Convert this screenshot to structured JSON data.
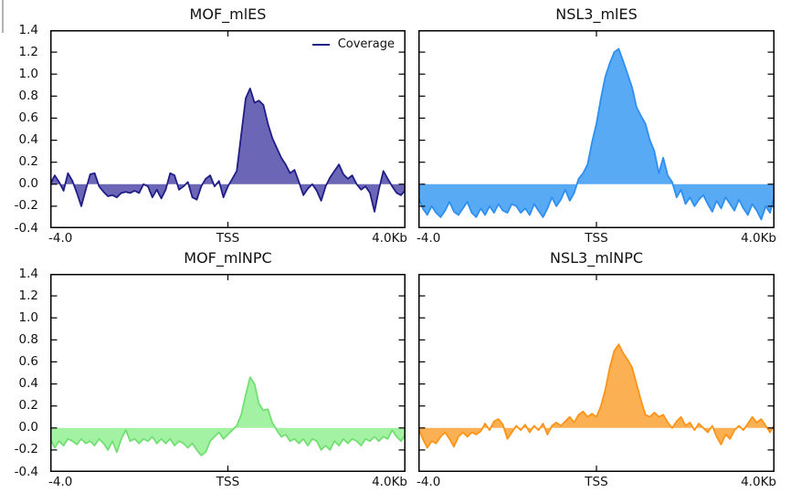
{
  "legend": {
    "label": "Coverage",
    "position": "upper right",
    "line_color": "#201d86"
  },
  "chart_data": [
    {
      "type": "area",
      "title": "MOF_mlES",
      "x_range": [
        -4,
        4
      ],
      "ylim": [
        -0.4,
        1.4
      ],
      "x_ticks": [
        "-4.0",
        "TSS",
        "4.0Kb"
      ],
      "y_ticks": [
        "1.4",
        "1.2",
        "1.0",
        "0.8",
        "0.6",
        "0.4",
        "0.2",
        "0.0",
        "-0.2",
        "-0.4"
      ],
      "show_y_labels": true,
      "has_legend": true,
      "grid": false,
      "line_color": "#201d86",
      "fill_color": "#6b66b6",
      "series_name": "Coverage",
      "values": [
        0.0,
        0.08,
        0.02,
        -0.06,
        0.1,
        0.03,
        -0.08,
        -0.2,
        -0.05,
        0.09,
        0.1,
        -0.02,
        -0.07,
        -0.11,
        -0.1,
        -0.12,
        -0.08,
        -0.07,
        -0.08,
        -0.06,
        -0.08,
        0.0,
        -0.02,
        -0.12,
        -0.05,
        -0.13,
        -0.05,
        0.1,
        0.08,
        -0.05,
        -0.02,
        0.02,
        -0.12,
        -0.14,
        -0.02,
        0.05,
        0.08,
        -0.02,
        0.03,
        -0.12,
        -0.02,
        0.05,
        0.12,
        0.45,
        0.78,
        0.87,
        0.74,
        0.76,
        0.72,
        0.55,
        0.42,
        0.33,
        0.24,
        0.18,
        0.1,
        0.13,
        0.02,
        -0.1,
        -0.04,
        0.0,
        -0.06,
        -0.15,
        -0.02,
        0.06,
        0.12,
        0.18,
        0.09,
        0.05,
        0.08,
        0.0,
        -0.05,
        -0.02,
        -0.08,
        -0.25,
        -0.05,
        0.12,
        0.05,
        -0.02,
        -0.08,
        -0.1,
        -0.05
      ]
    },
    {
      "type": "area",
      "title": "NSL3_mlES",
      "x_range": [
        -4,
        4
      ],
      "ylim": [
        -0.4,
        1.4
      ],
      "x_ticks": [
        "-4.0",
        "TSS",
        "4.0Kb"
      ],
      "y_ticks": [
        "1.4",
        "1.2",
        "1.0",
        "0.8",
        "0.6",
        "0.4",
        "0.2",
        "0.0",
        "-0.2",
        "-0.4"
      ],
      "show_y_labels": false,
      "has_legend": false,
      "grid": false,
      "line_color": "#2e8fef",
      "fill_color": "#58aaf5",
      "series_name": "Coverage",
      "values": [
        -0.12,
        -0.22,
        -0.28,
        -0.2,
        -0.26,
        -0.3,
        -0.24,
        -0.16,
        -0.25,
        -0.28,
        -0.22,
        -0.16,
        -0.26,
        -0.3,
        -0.22,
        -0.28,
        -0.2,
        -0.26,
        -0.18,
        -0.24,
        -0.26,
        -0.18,
        -0.2,
        -0.26,
        -0.22,
        -0.28,
        -0.18,
        -0.24,
        -0.3,
        -0.22,
        -0.12,
        -0.2,
        -0.14,
        -0.05,
        -0.15,
        -0.08,
        0.05,
        0.1,
        0.18,
        0.38,
        0.55,
        0.78,
        0.98,
        1.1,
        1.2,
        1.23,
        1.12,
        1.0,
        0.88,
        0.7,
        0.62,
        0.55,
        0.4,
        0.3,
        0.1,
        0.24,
        0.08,
        0.02,
        -0.12,
        -0.05,
        -0.18,
        -0.12,
        -0.2,
        -0.14,
        -0.1,
        -0.18,
        -0.25,
        -0.15,
        -0.22,
        -0.12,
        -0.18,
        -0.24,
        -0.14,
        -0.22,
        -0.28,
        -0.18,
        -0.24,
        -0.32,
        -0.2,
        -0.26,
        -0.1
      ]
    },
    {
      "type": "area",
      "title": "MOF_mlNPC",
      "x_range": [
        -4,
        4
      ],
      "ylim": [
        -0.4,
        1.4
      ],
      "x_ticks": [
        "-4.0",
        "TSS",
        "4.0Kb"
      ],
      "y_ticks": [
        "1.4",
        "1.2",
        "1.0",
        "0.8",
        "0.6",
        "0.4",
        "0.2",
        "0.0",
        "-0.2",
        "-0.4"
      ],
      "show_y_labels": true,
      "has_legend": false,
      "grid": false,
      "line_color": "#72df72",
      "fill_color": "#a3f1a3",
      "series_name": "Coverage",
      "values": [
        -0.1,
        -0.18,
        -0.12,
        -0.16,
        -0.1,
        -0.12,
        -0.15,
        -0.1,
        -0.14,
        -0.12,
        -0.16,
        -0.1,
        -0.14,
        -0.2,
        -0.12,
        -0.22,
        -0.1,
        -0.02,
        -0.12,
        -0.1,
        -0.14,
        -0.1,
        -0.12,
        -0.08,
        -0.14,
        -0.1,
        -0.14,
        -0.1,
        -0.16,
        -0.12,
        -0.14,
        -0.18,
        -0.14,
        -0.2,
        -0.25,
        -0.22,
        -0.12,
        -0.08,
        -0.04,
        -0.1,
        -0.06,
        -0.02,
        0.02,
        0.12,
        0.3,
        0.46,
        0.4,
        0.22,
        0.16,
        0.17,
        0.05,
        -0.02,
        -0.08,
        -0.06,
        -0.12,
        -0.1,
        -0.14,
        -0.1,
        -0.16,
        -0.1,
        -0.12,
        -0.2,
        -0.16,
        -0.2,
        -0.12,
        -0.16,
        -0.1,
        -0.14,
        -0.1,
        -0.12,
        -0.16,
        -0.1,
        -0.12,
        -0.08,
        -0.12,
        -0.08,
        -0.1,
        -0.02,
        -0.08,
        -0.12,
        -0.06
      ]
    },
    {
      "type": "area",
      "title": "NSL3_mlNPC",
      "x_range": [
        -4,
        4
      ],
      "ylim": [
        -0.4,
        1.4
      ],
      "x_ticks": [
        "-4.0",
        "TSS",
        "4.0Kb"
      ],
      "y_ticks": [
        "1.4",
        "1.2",
        "1.0",
        "0.8",
        "0.6",
        "0.4",
        "0.2",
        "0.0",
        "-0.2",
        "-0.4"
      ],
      "show_y_labels": false,
      "has_legend": false,
      "grid": false,
      "line_color": "#fb9418",
      "fill_color": "#fbb054",
      "series_name": "Coverage",
      "values": [
        0.0,
        -0.1,
        -0.18,
        -0.12,
        -0.14,
        -0.08,
        -0.04,
        -0.1,
        -0.17,
        -0.08,
        -0.04,
        -0.08,
        -0.04,
        -0.06,
        -0.03,
        0.04,
        -0.02,
        0.06,
        0.08,
        0.03,
        -0.1,
        -0.04,
        0.02,
        -0.02,
        0.03,
        -0.04,
        0.02,
        -0.02,
        0.04,
        -0.06,
        0.02,
        0.05,
        0.02,
        0.06,
        0.1,
        0.05,
        0.12,
        0.15,
        0.1,
        0.13,
        0.1,
        0.2,
        0.35,
        0.55,
        0.7,
        0.76,
        0.68,
        0.62,
        0.55,
        0.4,
        0.25,
        0.12,
        0.1,
        0.14,
        0.1,
        0.12,
        0.05,
        0.0,
        0.06,
        0.1,
        0.02,
        0.05,
        -0.02,
        0.04,
        0.0,
        -0.04,
        0.02,
        -0.08,
        -0.15,
        -0.06,
        -0.1,
        -0.02,
        0.02,
        -0.02,
        0.04,
        0.1,
        0.05,
        0.08,
        0.02,
        -0.04,
        0.03
      ]
    }
  ]
}
